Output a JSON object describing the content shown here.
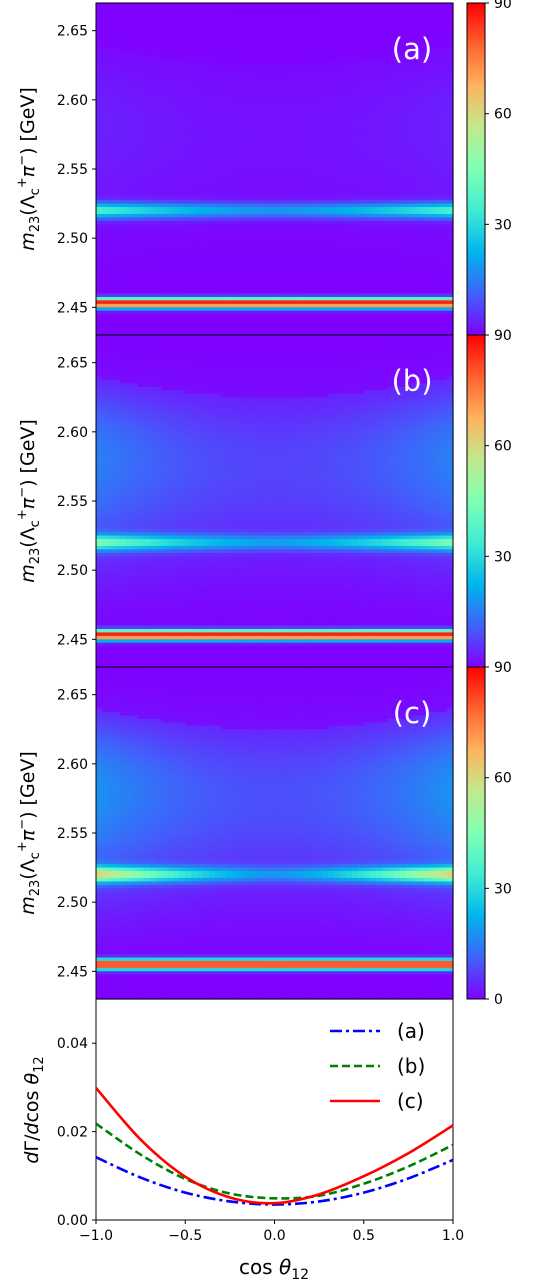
{
  "chart_data": [
    {
      "type": "heatmap",
      "panel_label": "(a)",
      "ylabel": "m23(Λc+π−) [GeV]",
      "xlim": [
        -1.0,
        1.0
      ],
      "ylim": [
        2.43,
        2.67
      ],
      "yticks": [
        "2.45",
        "2.50",
        "2.55",
        "2.60",
        "2.65"
      ],
      "colorbar": {
        "colormap": "rainbow",
        "range": [
          0,
          90
        ],
        "ticks": [
          "0",
          "30",
          "60",
          "90"
        ]
      },
      "bands": [
        {
          "m23": 2.453,
          "intensity": 90,
          "shape": "uniform"
        },
        {
          "m23": 2.52,
          "edge_intensity": 35,
          "center_intensity": 18,
          "shape": "edges"
        }
      ],
      "broad_intensity": 3
    },
    {
      "type": "heatmap",
      "panel_label": "(b)",
      "ylabel": "m23(Λc+π−) [GeV]",
      "xlim": [
        -1.0,
        1.0
      ],
      "ylim": [
        2.43,
        2.67
      ],
      "yticks": [
        "2.45",
        "2.50",
        "2.55",
        "2.60",
        "2.65"
      ],
      "colorbar": {
        "colormap": "rainbow",
        "range": [
          0,
          90
        ],
        "ticks": [
          "0",
          "30",
          "60",
          "90"
        ]
      },
      "bands": [
        {
          "m23": 2.453,
          "intensity": 90,
          "shape": "uniform"
        },
        {
          "m23": 2.52,
          "edge_intensity": 38,
          "center_intensity": 16,
          "shape": "edges"
        }
      ],
      "broad_intensity": 12
    },
    {
      "type": "heatmap",
      "panel_label": "(c)",
      "ylabel": "m23(Λc+π−) [GeV]",
      "xlim": [
        -1.0,
        1.0
      ],
      "ylim": [
        2.43,
        2.67
      ],
      "yticks": [
        "2.45",
        "2.50",
        "2.55",
        "2.60",
        "2.65"
      ],
      "xticks": [
        "0"
      ],
      "colorbar": {
        "colormap": "rainbow",
        "range": [
          0,
          90
        ],
        "ticks": [
          "0",
          "30",
          "60",
          "90"
        ]
      },
      "bands": [
        {
          "m23": 2.455,
          "intensity": 90,
          "shape": "uniform"
        },
        {
          "m23": 2.52,
          "edge_intensity": 55,
          "center_intensity": 14,
          "shape": "edges"
        }
      ],
      "broad_intensity": 14
    },
    {
      "type": "line",
      "xlabel": "cos θ12",
      "ylabel": "dΓ/dcos θ12",
      "xlim": [
        -1.0,
        1.0
      ],
      "ylim": [
        0.0,
        0.05
      ],
      "xticks": [
        "−1.0",
        "−0.5",
        "0.0",
        "0.5",
        "1.0"
      ],
      "yticks": [
        "0.00",
        "0.02",
        "0.04"
      ],
      "legend": "top-right",
      "x": [
        -1.0,
        -0.75,
        -0.5,
        -0.25,
        0.0,
        0.25,
        0.5,
        0.75,
        1.0
      ],
      "series": [
        {
          "name": "(a)",
          "color": "#0000ff",
          "style": "dashdot",
          "values": [
            0.0142,
            0.0096,
            0.0062,
            0.0042,
            0.0035,
            0.0042,
            0.0062,
            0.0094,
            0.0136
          ]
        },
        {
          "name": "(b)",
          "color": "#008000",
          "style": "dashed",
          "values": [
            0.0218,
            0.0148,
            0.0093,
            0.006,
            0.0049,
            0.0055,
            0.0082,
            0.0121,
            0.017
          ]
        },
        {
          "name": "(c)",
          "color": "#ff0000",
          "style": "solid",
          "values": [
            0.0299,
            0.0182,
            0.0098,
            0.0051,
            0.0038,
            0.0058,
            0.0099,
            0.0151,
            0.0214
          ]
        }
      ]
    }
  ]
}
